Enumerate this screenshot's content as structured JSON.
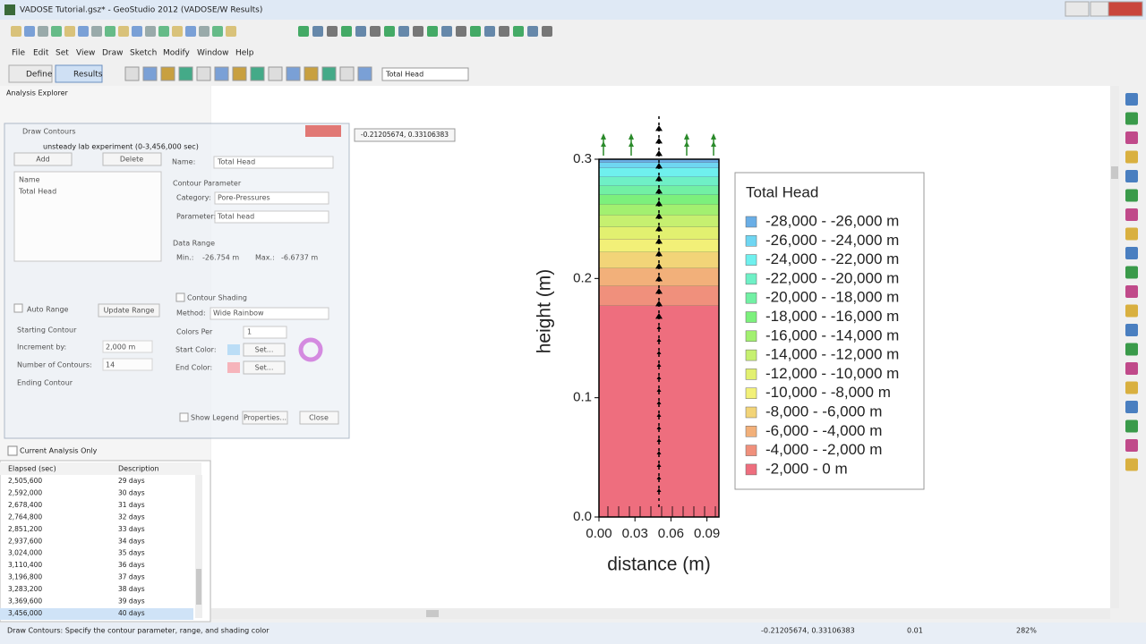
{
  "window": {
    "title": "VADOSE Tutorial.gsz* - GeoStudio 2012 (VADOSE/W Results)"
  },
  "menu": [
    "File",
    "Edit",
    "Set",
    "View",
    "Draw",
    "Sketch",
    "Modify",
    "Window",
    "Help"
  ],
  "toolbar": {
    "define": "Define",
    "results": "Results",
    "view_dropdown": "Total Head"
  },
  "analysis_explorer": {
    "title": "Analysis Explorer",
    "analysis": "unsteady lab experiment (0-3,456,000 sec)"
  },
  "dialog": {
    "title": "Draw Contours",
    "add": "Add",
    "delete": "Delete",
    "name_label": "Name:",
    "name_value": "Total Head",
    "list_header": "Name",
    "list_item": "Total Head",
    "contour_parameter": "Contour Parameter",
    "category_label": "Category:",
    "category_value": "Pore-Pressures",
    "parameter_label": "Parameter:",
    "parameter_value": "Total head",
    "data_range": "Data Range",
    "min_label": "Min.:",
    "min_value": "-26.754 m",
    "max_label": "Max.:",
    "max_value": "-6.6737 m",
    "auto_range": "Auto Range",
    "update_range": "Update Range",
    "starting_contour": "Starting Contour",
    "increment_label": "Increment by:",
    "increment_value": "2,000 m",
    "number_label": "Number of Contours:",
    "number_value": "14",
    "ending_contour": "Ending Contour",
    "contour_shading": "Contour Shading",
    "method_label": "Method:",
    "method_value": "Wide Rainbow",
    "colors_per_label": "Colors Per",
    "colors_per_value": "1",
    "start_color": "Start Color:",
    "end_color": "End Color:",
    "set_start": "Set...",
    "set_end": "Set...",
    "show_legend": "Show Legend",
    "properties": "Properties...",
    "close": "Close"
  },
  "time_list": {
    "filter": "Current Analysis Only",
    "headers": [
      "Elapsed (sec)",
      "Description"
    ],
    "rows": [
      [
        "2,505,600",
        "29 days"
      ],
      [
        "2,592,000",
        "30 days"
      ],
      [
        "2,678,400",
        "31 days"
      ],
      [
        "2,764,800",
        "32 days"
      ],
      [
        "2,851,200",
        "33 days"
      ],
      [
        "2,937,600",
        "34 days"
      ],
      [
        "3,024,000",
        "35 days"
      ],
      [
        "3,110,400",
        "36 days"
      ],
      [
        "3,196,800",
        "37 days"
      ],
      [
        "3,283,200",
        "38 days"
      ],
      [
        "3,369,600",
        "39 days"
      ],
      [
        "3,456,000",
        "40 days"
      ]
    ]
  },
  "tooltip": "-0.21205674, 0.33106383",
  "status": {
    "message": "Draw Contours: Specify the contour parameter, range, and shading color",
    "coords": "-0.21205674, 0.33106383",
    "scale": "0.01",
    "zoom": "282%"
  },
  "chart_data": {
    "type": "contour",
    "xlabel": "distance (m)",
    "ylabel": "height (m)",
    "legend_title": "Total Head",
    "xlim": [
      0,
      0.1
    ],
    "ylim": [
      0,
      0.3
    ],
    "xticks": [
      {
        "value": 0,
        "label": "0.00"
      },
      {
        "value": 0.03,
        "label": "0.03"
      },
      {
        "value": 0.06,
        "label": "0.06"
      },
      {
        "value": 0.09,
        "label": "0.09"
      }
    ],
    "yticks": [
      {
        "value": 0,
        "label": "0.0"
      },
      0.1,
      0.2,
      0.3
    ],
    "series": [
      {
        "name": "-28,000 - -26,000 m",
        "color": "#6aaee6",
        "values": [
          0.297,
          0.3
        ]
      },
      {
        "name": "-26,000 - -24,000 m",
        "color": "#6fd6f2",
        "values": [
          0.2925,
          0.297
        ]
      },
      {
        "name": "-24,000 - -22,000 m",
        "color": "#6ff0ee",
        "values": [
          0.285,
          0.2925
        ]
      },
      {
        "name": "-22,000 - -20,000 m",
        "color": "#6ff0c6",
        "values": [
          0.2775,
          0.285
        ]
      },
      {
        "name": "-20,000 - -18,000 m",
        "color": "#72f0a4",
        "values": [
          0.27,
          0.2775
        ]
      },
      {
        "name": "-18,000 - -16,000 m",
        "color": "#7cf07c",
        "values": [
          0.262,
          0.27
        ]
      },
      {
        "name": "-16,000 - -14,000 m",
        "color": "#a2f070",
        "values": [
          0.253,
          0.262
        ]
      },
      {
        "name": "-14,000 - -12,000 m",
        "color": "#c6f070",
        "values": [
          0.243,
          0.253
        ]
      },
      {
        "name": "-12,000 - -10,000 m",
        "color": "#e2f070",
        "values": [
          0.233,
          0.243
        ]
      },
      {
        "name": "-10,000 - -8,000 m",
        "color": "#f2f078",
        "values": [
          0.222,
          0.233
        ]
      },
      {
        "name": "-8,000 - -6,000 m",
        "color": "#f2d478",
        "values": [
          0.2085,
          0.222
        ]
      },
      {
        "name": "-6,000 - -4,000 m",
        "color": "#f2b07a",
        "values": [
          0.1935,
          0.2085
        ]
      },
      {
        "name": "-4,000 - -2,000 m",
        "color": "#f0907c",
        "values": [
          0.177,
          0.1935
        ]
      },
      {
        "name": "-2,000 - 0 m",
        "color": "#ee6e7e",
        "values": [
          0,
          0.177
        ]
      }
    ]
  }
}
